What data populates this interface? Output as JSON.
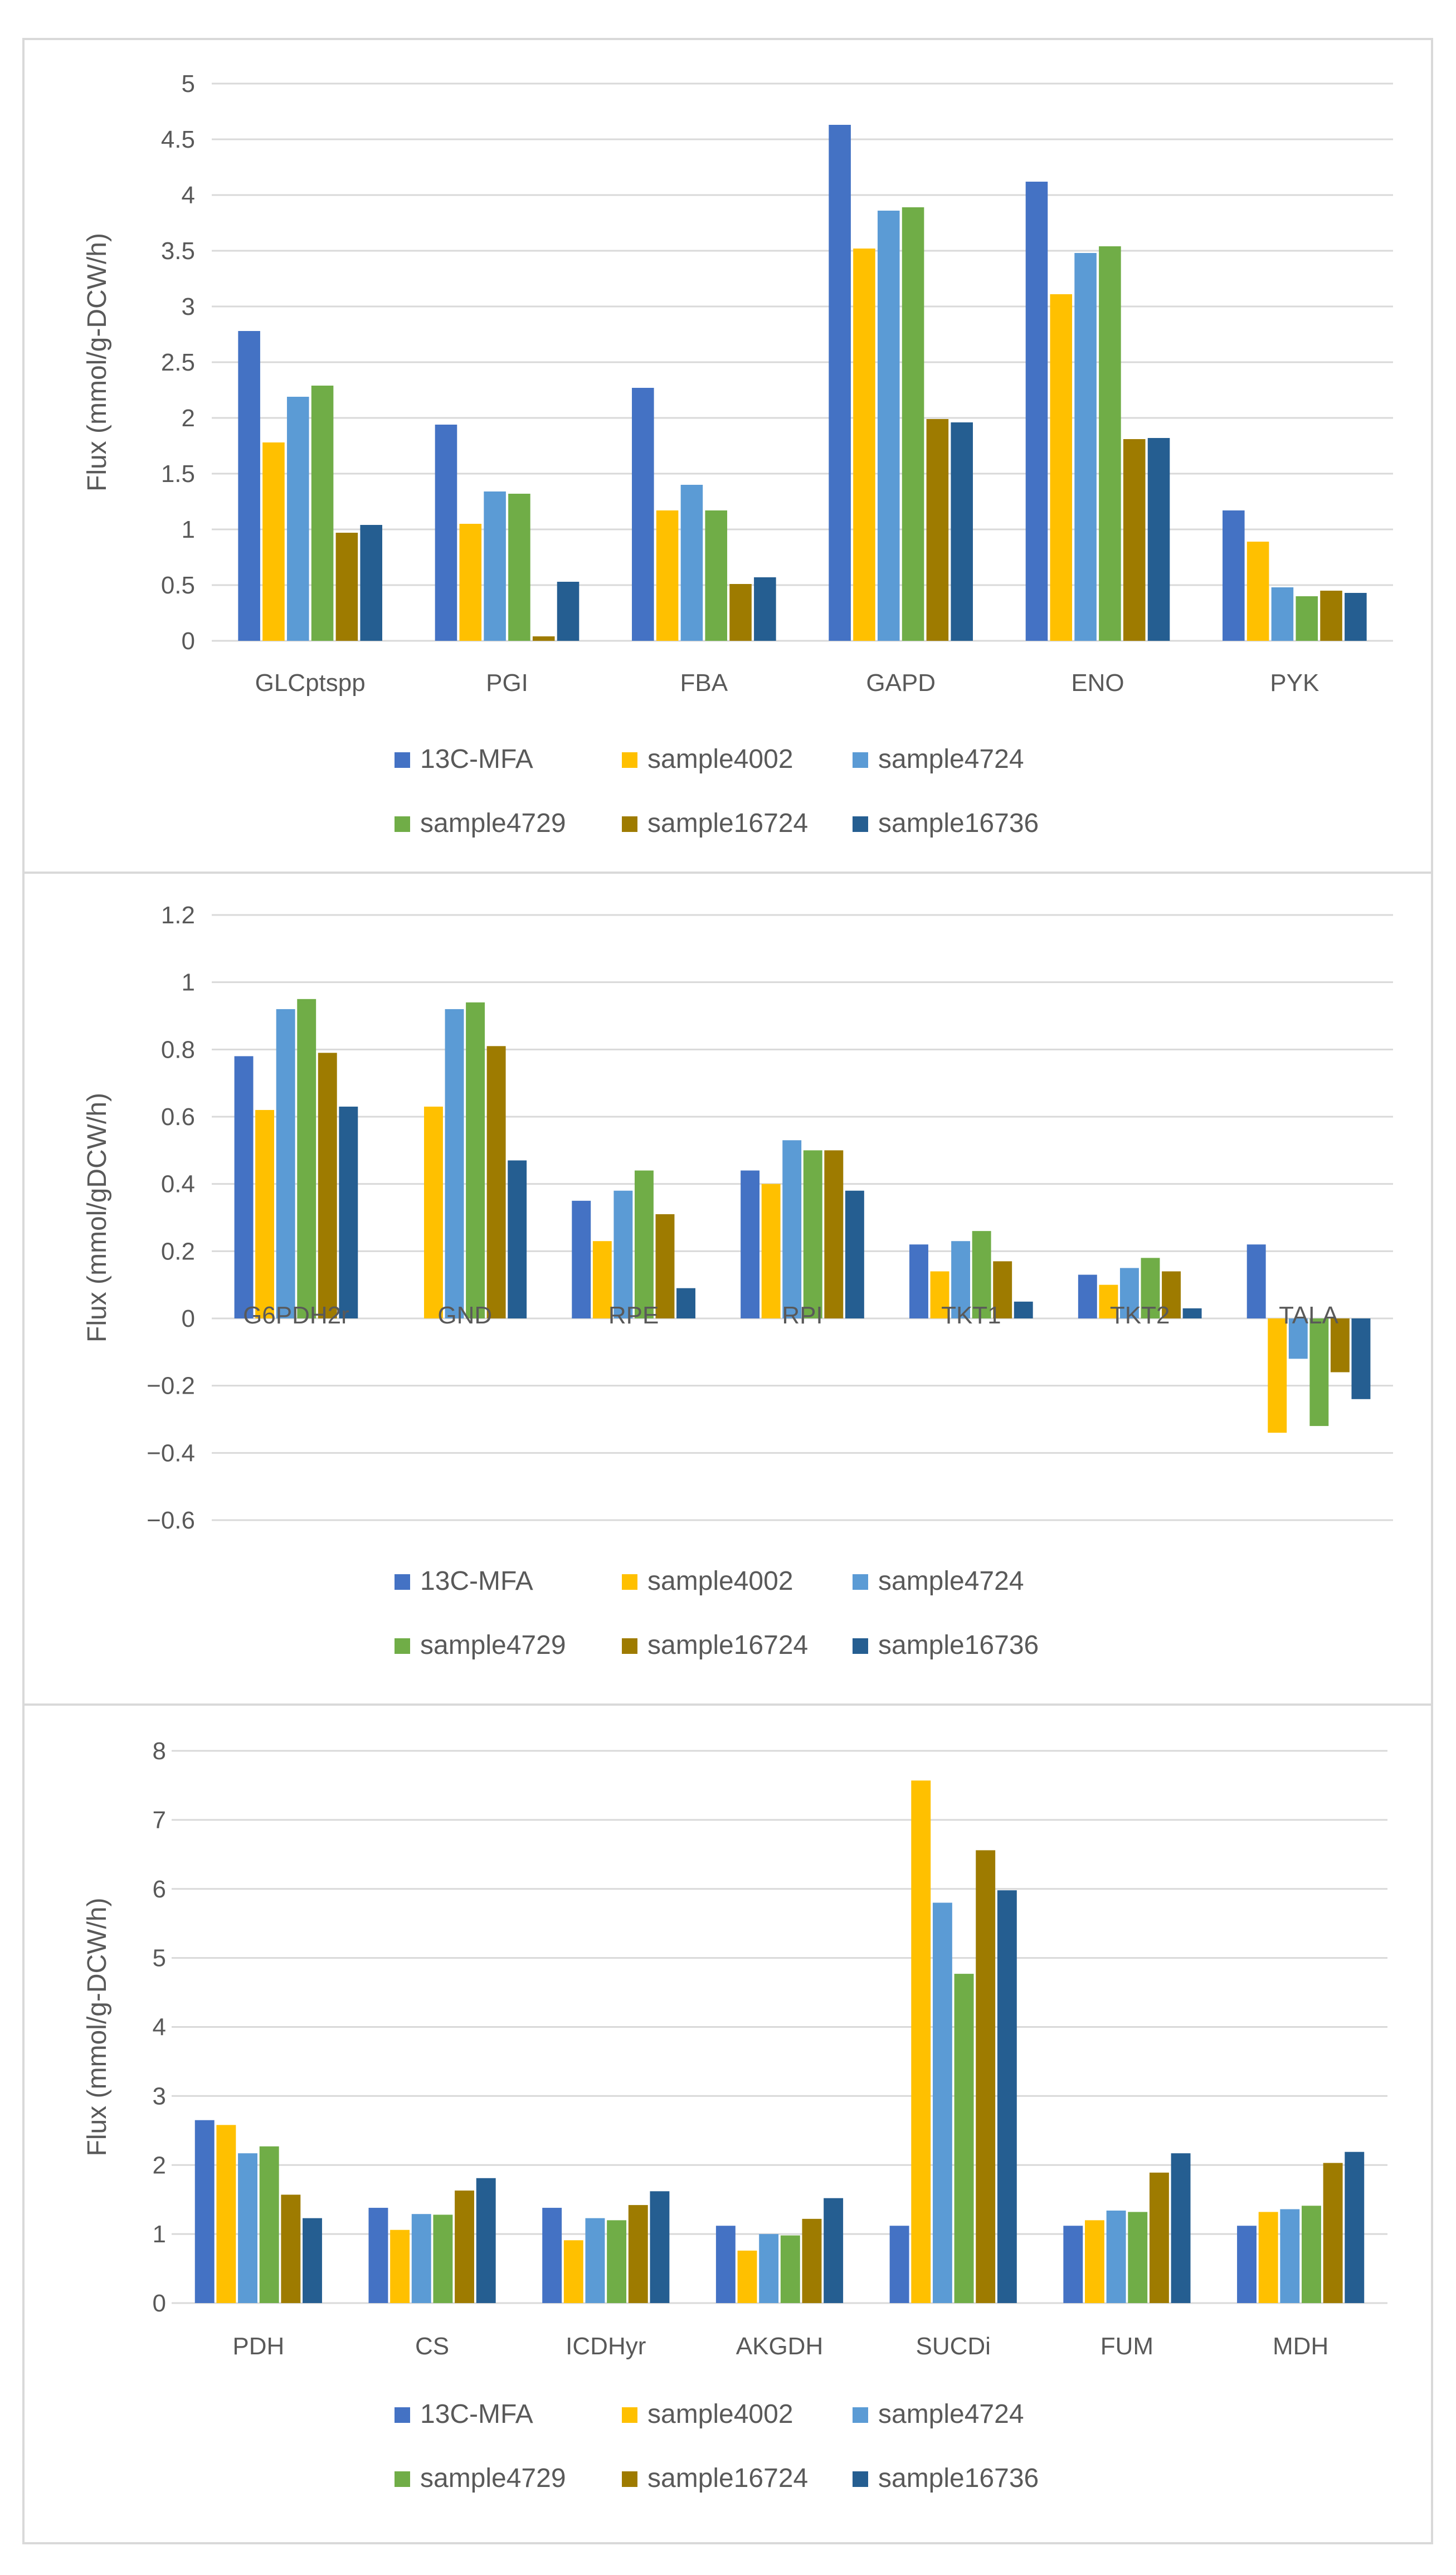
{
  "legend_colors": [
    "#4472c4",
    "#ffc000",
    "#5b9bd5",
    "#70ad47",
    "#9e7b00",
    "#255e91"
  ],
  "chart_data": [
    {
      "type": "bar",
      "title": "",
      "xlabel": "",
      "ylabel": "Flux (mmol/g-DCW/h)",
      "ylim": [
        0,
        5
      ],
      "yticks": [
        0,
        0.5,
        1,
        1.5,
        2,
        2.5,
        3,
        3.5,
        4,
        4.5,
        5
      ],
      "ytick_labels": [
        "0",
        "0.5",
        "1",
        "1.5",
        "2",
        "2.5",
        "3",
        "3.5",
        "4",
        "4.5",
        "5"
      ],
      "grid": true,
      "legend_position": "bottom",
      "categories": [
        "GLCptspp",
        "PGI",
        "FBA",
        "GAPD",
        "ENO",
        "PYK"
      ],
      "series": [
        {
          "name": "13C-MFA",
          "values": [
            2.78,
            1.94,
            2.27,
            4.63,
            4.12,
            1.17
          ]
        },
        {
          "name": "sample4002",
          "values": [
            1.78,
            1.05,
            1.17,
            3.52,
            3.11,
            0.89
          ]
        },
        {
          "name": "sample4724",
          "values": [
            2.19,
            1.34,
            1.4,
            3.86,
            3.48,
            0.48
          ]
        },
        {
          "name": "sample4729",
          "values": [
            2.29,
            1.32,
            1.17,
            3.89,
            3.54,
            0.4
          ]
        },
        {
          "name": "sample16724",
          "values": [
            0.97,
            0.04,
            0.51,
            1.99,
            1.81,
            0.45
          ]
        },
        {
          "name": "sample16736",
          "values": [
            1.04,
            0.53,
            0.57,
            1.96,
            1.82,
            0.43
          ]
        }
      ]
    },
    {
      "type": "bar",
      "title": "",
      "xlabel": "",
      "ylabel": "Flux (mmol/gDCW/h)",
      "ylim": [
        -0.6,
        1.2
      ],
      "yticks": [
        -0.6,
        -0.4,
        -0.2,
        0,
        0.2,
        0.4,
        0.6,
        0.8,
        1,
        1.2
      ],
      "ytick_labels": [
        "−0.6",
        "−0.4",
        "−0.2",
        "0",
        "0.2",
        "0.4",
        "0.6",
        "0.8",
        "1",
        "1.2"
      ],
      "grid": true,
      "legend_position": "bottom",
      "categories": [
        "G6PDH2r",
        "GND",
        "RPE",
        "RPI",
        "TKT1",
        "TKT2",
        "TALA"
      ],
      "series": [
        {
          "name": "13C-MFA",
          "values": [
            0.78,
            0,
            0.35,
            0.44,
            0.22,
            0.13,
            0.22
          ]
        },
        {
          "name": "sample4002",
          "values": [
            0.62,
            0.63,
            0.23,
            0.4,
            0.14,
            0.1,
            -0.34
          ]
        },
        {
          "name": "sample4724",
          "values": [
            0.92,
            0.92,
            0.38,
            0.53,
            0.23,
            0.15,
            -0.12
          ]
        },
        {
          "name": "sample4729",
          "values": [
            0.95,
            0.94,
            0.44,
            0.5,
            0.26,
            0.18,
            -0.32
          ]
        },
        {
          "name": "sample16724",
          "values": [
            0.79,
            0.81,
            0.31,
            0.5,
            0.17,
            0.14,
            -0.16
          ]
        },
        {
          "name": "sample16736",
          "values": [
            0.63,
            0.47,
            0.09,
            0.38,
            0.05,
            0.03,
            -0.24
          ]
        }
      ]
    },
    {
      "type": "bar",
      "title": "",
      "xlabel": "",
      "ylabel": "Flux (mmol/g-DCW/h)",
      "ylim": [
        0,
        8
      ],
      "yticks": [
        0,
        1,
        2,
        3,
        4,
        5,
        6,
        7,
        8
      ],
      "ytick_labels": [
        "0",
        "1",
        "2",
        "3",
        "4",
        "5",
        "6",
        "7",
        "8"
      ],
      "grid": true,
      "legend_position": "bottom",
      "categories": [
        "PDH",
        "CS",
        "ICDHyr",
        "AKGDH",
        "SUCDi",
        "FUM",
        "MDH"
      ],
      "series": [
        {
          "name": "13C-MFA",
          "values": [
            2.65,
            1.38,
            1.38,
            1.12,
            1.12,
            1.12,
            1.12
          ]
        },
        {
          "name": "sample4002",
          "values": [
            2.58,
            1.06,
            0.91,
            0.76,
            7.57,
            1.2,
            1.32
          ]
        },
        {
          "name": "sample4724",
          "values": [
            2.17,
            1.29,
            1.23,
            1.0,
            5.8,
            1.34,
            1.36
          ]
        },
        {
          "name": "sample4729",
          "values": [
            2.27,
            1.28,
            1.2,
            0.98,
            4.77,
            1.32,
            1.41
          ]
        },
        {
          "name": "sample16724",
          "values": [
            1.57,
            1.63,
            1.42,
            1.22,
            6.56,
            1.89,
            2.03
          ]
        },
        {
          "name": "sample16736",
          "values": [
            1.23,
            1.81,
            1.62,
            1.52,
            5.98,
            2.17,
            2.19
          ]
        }
      ]
    }
  ]
}
